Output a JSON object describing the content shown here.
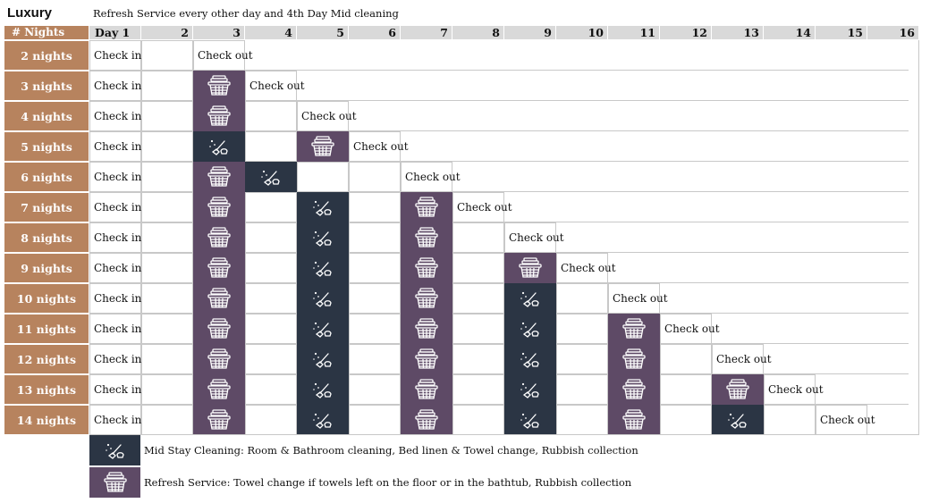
{
  "title": "Luxury",
  "subtitle": "Refresh Service every other day and 4th Day Mid cleaning",
  "header": {
    "nights_label": "# Nights",
    "days": [
      "Day 1",
      "2",
      "3",
      "4",
      "5",
      "6",
      "7",
      "8",
      "9",
      "10",
      "11",
      "12",
      "13",
      "14",
      "15",
      "16"
    ]
  },
  "check_in_label": "Check in",
  "check_out_label": "Check out",
  "rows": [
    {
      "label": "2 nights",
      "services": []
    },
    {
      "label": "3 nights",
      "services": [
        {
          "day": 3,
          "type": "refresh"
        }
      ]
    },
    {
      "label": "4 nights",
      "services": [
        {
          "day": 3,
          "type": "refresh"
        }
      ]
    },
    {
      "label": "5 nights",
      "services": [
        {
          "day": 3,
          "type": "mid"
        },
        {
          "day": 5,
          "type": "refresh"
        }
      ]
    },
    {
      "label": "6 nights",
      "services": [
        {
          "day": 3,
          "type": "refresh"
        },
        {
          "day": 4,
          "type": "mid"
        }
      ]
    },
    {
      "label": "7 nights",
      "services": [
        {
          "day": 3,
          "type": "refresh"
        },
        {
          "day": 5,
          "type": "mid"
        },
        {
          "day": 7,
          "type": "refresh"
        }
      ]
    },
    {
      "label": "8 nights",
      "services": [
        {
          "day": 3,
          "type": "refresh"
        },
        {
          "day": 5,
          "type": "mid"
        },
        {
          "day": 7,
          "type": "refresh"
        }
      ]
    },
    {
      "label": "9 nights",
      "services": [
        {
          "day": 3,
          "type": "refresh"
        },
        {
          "day": 5,
          "type": "mid"
        },
        {
          "day": 7,
          "type": "refresh"
        },
        {
          "day": 9,
          "type": "refresh"
        }
      ]
    },
    {
      "label": "10 nights",
      "services": [
        {
          "day": 3,
          "type": "refresh"
        },
        {
          "day": 5,
          "type": "mid"
        },
        {
          "day": 7,
          "type": "refresh"
        },
        {
          "day": 9,
          "type": "mid"
        }
      ]
    },
    {
      "label": "11 nights",
      "services": [
        {
          "day": 3,
          "type": "refresh"
        },
        {
          "day": 5,
          "type": "mid"
        },
        {
          "day": 7,
          "type": "refresh"
        },
        {
          "day": 9,
          "type": "mid"
        },
        {
          "day": 11,
          "type": "refresh"
        }
      ]
    },
    {
      "label": "12 nights",
      "services": [
        {
          "day": 3,
          "type": "refresh"
        },
        {
          "day": 5,
          "type": "mid"
        },
        {
          "day": 7,
          "type": "refresh"
        },
        {
          "day": 9,
          "type": "mid"
        },
        {
          "day": 11,
          "type": "refresh"
        }
      ]
    },
    {
      "label": "13 nights",
      "services": [
        {
          "day": 3,
          "type": "refresh"
        },
        {
          "day": 5,
          "type": "mid"
        },
        {
          "day": 7,
          "type": "refresh"
        },
        {
          "day": 9,
          "type": "mid"
        },
        {
          "day": 11,
          "type": "refresh"
        },
        {
          "day": 13,
          "type": "refresh"
        }
      ]
    },
    {
      "label": "14 nights",
      "services": [
        {
          "day": 3,
          "type": "refresh"
        },
        {
          "day": 5,
          "type": "mid"
        },
        {
          "day": 7,
          "type": "refresh"
        },
        {
          "day": 9,
          "type": "mid"
        },
        {
          "day": 11,
          "type": "refresh"
        },
        {
          "day": 13,
          "type": "mid"
        }
      ]
    }
  ],
  "legend": {
    "mid_icon": "broom-sparkle-icon",
    "refresh_icon": "laundry-basket-icon",
    "mid_text": "Mid Stay Cleaning: Room & Bathroom cleaning, Bed linen & Towel change, Rubbish collection",
    "refresh_text": "Refresh Service: Towel change if towels left on the floor or in the bathtub, Rubbish collection"
  },
  "colors": {
    "row_label_bg": "#b7835e",
    "header_bg": "#d9d9d9",
    "refresh_bg": "#5e4a66",
    "mid_bg": "#2b3544"
  }
}
